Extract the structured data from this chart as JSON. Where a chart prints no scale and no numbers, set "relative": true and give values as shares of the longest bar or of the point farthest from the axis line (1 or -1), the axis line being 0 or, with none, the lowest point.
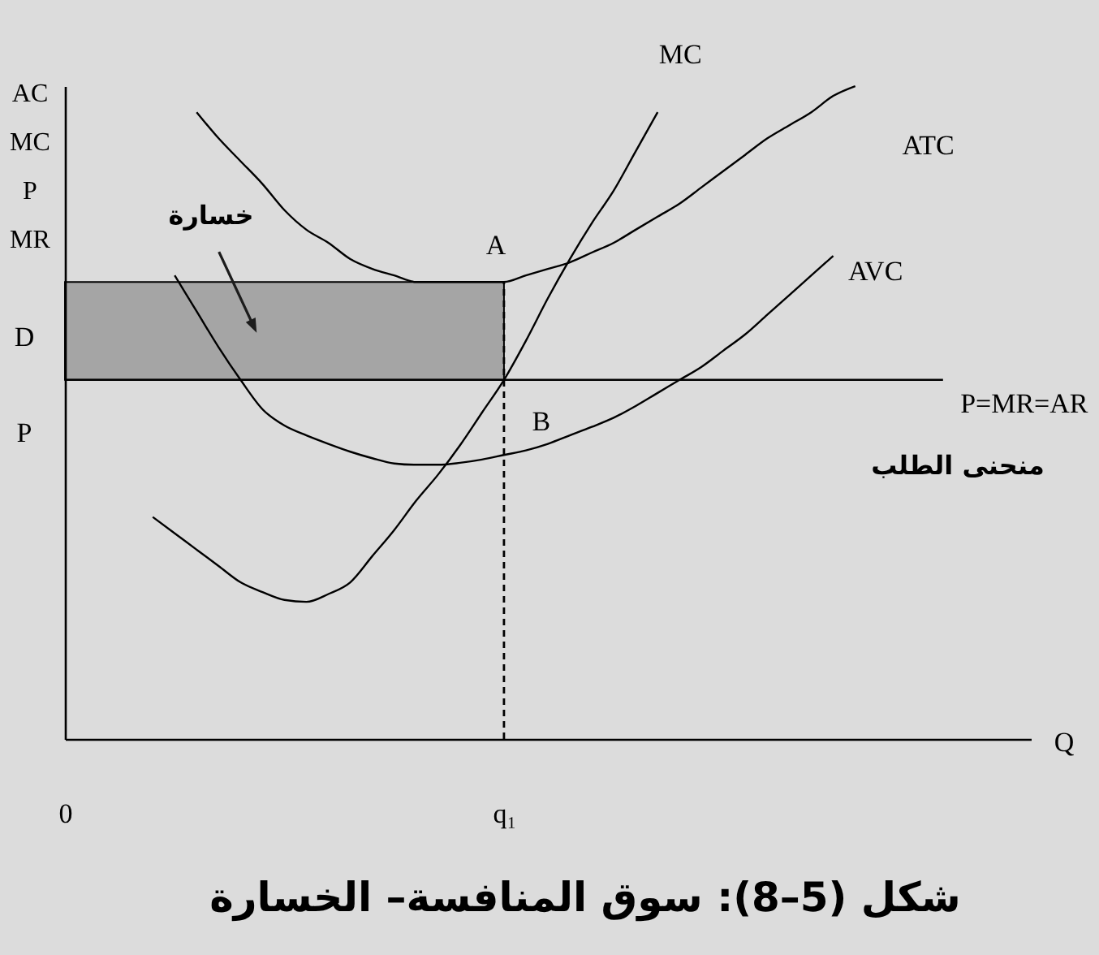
{
  "chart_data": {
    "type": "line",
    "relative": true,
    "title": "شكل (5–8): سوق المنافسة– الخسارة",
    "xlabel": "Q",
    "ylabel": "AC MC P MR",
    "categories": [
      "0",
      null,
      null,
      null,
      null,
      null,
      null,
      null,
      null,
      null,
      null,
      null,
      null,
      null,
      null,
      null,
      null,
      null,
      null,
      null,
      "q₁",
      null,
      null,
      null,
      null,
      null,
      null,
      null,
      null,
      null,
      null,
      null,
      null,
      null,
      null,
      null,
      null,
      null,
      null,
      null,
      null,
      null,
      null,
      null,
      null
    ],
    "series": [
      {
        "name": "MC",
        "color": "#000000",
        "values": [
          null,
          null,
          null,
          null,
          0.34,
          0.315,
          0.29,
          0.265,
          0.24,
          0.225,
          0.213,
          0.21,
          0.222,
          0.24,
          0.28,
          0.32,
          0.365,
          0.405,
          0.45,
          0.5,
          0.55,
          0.61,
          0.675,
          0.735,
          0.79,
          0.84,
          0.9,
          0.96,
          null,
          null,
          null,
          null,
          null,
          null,
          null,
          null,
          null,
          null,
          null,
          null,
          null,
          null,
          null,
          null,
          null
        ]
      },
      {
        "name": "ATC",
        "color": "#000000",
        "values": [
          null,
          null,
          null,
          null,
          null,
          null,
          0.96,
          0.92,
          0.885,
          0.85,
          0.81,
          0.78,
          0.76,
          0.735,
          0.72,
          0.71,
          0.7,
          0.7,
          0.7,
          0.7,
          0.7,
          0.71,
          0.72,
          0.73,
          0.745,
          0.76,
          0.78,
          0.8,
          0.82,
          0.845,
          0.87,
          0.895,
          0.92,
          0.94,
          0.96,
          0.985,
          1,
          null,
          null,
          null,
          null,
          null,
          null,
          null,
          null
        ]
      },
      {
        "name": "AVC",
        "color": "#000000",
        "values": [
          null,
          null,
          null,
          null,
          null,
          0.71,
          0.655,
          0.6,
          0.55,
          0.505,
          0.48,
          0.465,
          0.452,
          0.44,
          0.43,
          0.422,
          0.42,
          0.42,
          0.423,
          0.428,
          0.435,
          0.442,
          0.452,
          0.465,
          0.478,
          0.492,
          0.51,
          0.53,
          0.55,
          0.57,
          0.595,
          0.62,
          0.65,
          0.68,
          0.71,
          0.74,
          null,
          null,
          null,
          null,
          null,
          null,
          null,
          null,
          null
        ]
      },
      {
        "name": "P=MR=AR",
        "color": "#000000",
        "values": [
          0.55,
          0.55,
          0.55,
          0.55,
          0.55,
          0.55,
          0.55,
          0.55,
          0.55,
          0.55,
          0.55,
          0.55,
          0.55,
          0.55,
          0.55,
          0.55,
          0.55,
          0.55,
          0.55,
          0.55,
          0.55,
          0.55,
          0.55,
          0.55,
          0.55,
          0.55,
          0.55,
          0.55,
          0.55,
          0.55,
          0.55,
          0.55,
          0.55,
          0.55,
          0.55,
          0.55,
          0.55,
          0.55,
          0.55,
          0.55,
          0.55,
          null,
          null,
          null,
          null
        ],
        "lower": [
          0.55,
          0.55,
          0.55,
          0.55,
          0.55,
          0.55,
          0.55,
          0.55,
          0.55,
          0.55,
          0.55,
          0.55,
          0.55,
          0.55,
          0.55,
          0.55,
          0.55,
          0.55,
          0.55,
          0.55,
          0.55,
          null,
          null,
          null,
          null,
          null,
          null,
          null,
          null,
          null,
          null,
          null,
          null,
          null,
          null,
          null,
          null,
          null,
          null,
          null,
          null,
          null,
          null,
          null,
          null
        ],
        "upper": [
          0.7,
          0.7,
          0.7,
          0.7,
          0.7,
          0.7,
          0.7,
          0.7,
          0.7,
          0.7,
          0.7,
          0.7,
          0.7,
          0.7,
          0.7,
          0.7,
          0.7,
          0.7,
          0.7,
          0.7,
          0.7,
          null,
          null,
          null,
          null,
          null,
          null,
          null,
          null,
          null,
          null,
          null,
          null,
          null,
          null,
          null,
          null,
          null,
          null,
          null,
          null,
          null,
          null,
          null,
          null
        ]
      }
    ],
    "ref_lines": [
      {
        "axis": "x",
        "value": "q₁",
        "color": "#000000",
        "line_style": "dashed"
      }
    ],
    "annotations": [
      "D",
      "P",
      {
        "text": "A",
        "x": "q₁",
        "y": 0.7
      },
      {
        "text": "B",
        "x": "q₁",
        "y": 0.55
      },
      "خسارة",
      "منحنى الطلب"
    ]
  }
}
